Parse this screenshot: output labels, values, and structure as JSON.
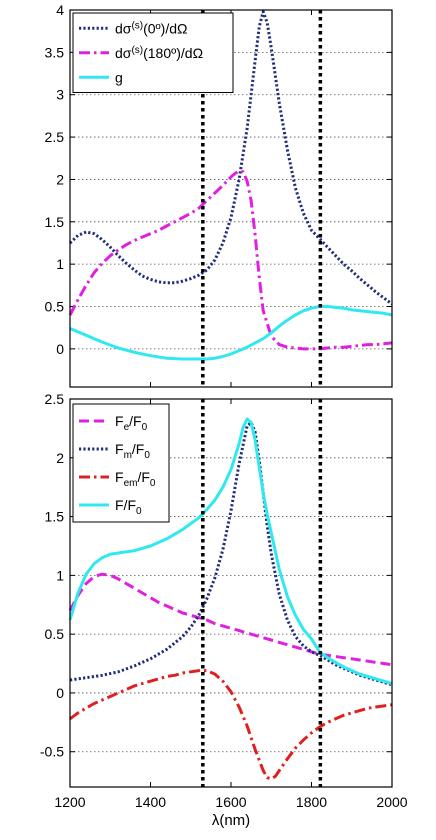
{
  "chart_data": [
    {
      "type": "line",
      "xlim": [
        1200,
        2000
      ],
      "ylim": [
        -0.45,
        4
      ],
      "y_ticks": [
        0,
        0.5,
        1,
        1.5,
        2,
        2.5,
        3,
        3.5,
        4
      ],
      "y_tick_labels": [
        "0",
        "0.5",
        "1",
        "1.5",
        "2",
        "2.5",
        "3",
        "3.5",
        "4"
      ],
      "x_ticks": [
        1200,
        1400,
        1600,
        1800,
        2000
      ],
      "x_tick_labels": [],
      "grid": "horizontal dotted",
      "legend_position": "top-left",
      "vertical_markers": [
        1530,
        1822
      ],
      "series": [
        {
          "name": "dσ(s)(0º)/dΩ",
          "legend": {
            "base": "dσ",
            "sup": "(s)",
            "rest": "(0º)/dΩ"
          },
          "color": "#1f2f7a",
          "dash": "dotted",
          "x": [
            1200,
            1220,
            1240,
            1260,
            1280,
            1300,
            1320,
            1340,
            1360,
            1380,
            1400,
            1420,
            1440,
            1460,
            1480,
            1500,
            1520,
            1540,
            1560,
            1580,
            1600,
            1620,
            1640,
            1660,
            1670,
            1680,
            1690,
            1700,
            1720,
            1740,
            1760,
            1780,
            1800,
            1820,
            1840,
            1860,
            1880,
            1900,
            1920,
            1940,
            1960,
            1980,
            2000
          ],
          "y": [
            1.25,
            1.34,
            1.38,
            1.36,
            1.29,
            1.2,
            1.1,
            1.01,
            0.93,
            0.86,
            0.82,
            0.79,
            0.78,
            0.78,
            0.8,
            0.83,
            0.87,
            0.93,
            1.05,
            1.25,
            1.55,
            2.0,
            2.6,
            3.4,
            3.8,
            3.98,
            3.85,
            3.55,
            2.9,
            2.35,
            1.9,
            1.6,
            1.4,
            1.3,
            1.2,
            1.1,
            1.0,
            0.92,
            0.83,
            0.75,
            0.67,
            0.6,
            0.53
          ]
        },
        {
          "name": "dσ(s)(180º)/dΩ",
          "legend": {
            "base": "dσ",
            "sup": "(s)",
            "rest": "(180º)/dΩ"
          },
          "color": "#e020e0",
          "dash": "dashdot",
          "x": [
            1200,
            1220,
            1240,
            1260,
            1280,
            1300,
            1320,
            1340,
            1360,
            1380,
            1400,
            1420,
            1440,
            1460,
            1480,
            1500,
            1520,
            1540,
            1560,
            1580,
            1600,
            1610,
            1620,
            1630,
            1640,
            1650,
            1660,
            1670,
            1680,
            1700,
            1720,
            1740,
            1760,
            1780,
            1800,
            1820,
            1840,
            1860,
            1880,
            1900,
            1920,
            1940,
            1960,
            1980,
            2000
          ],
          "y": [
            0.4,
            0.58,
            0.75,
            0.9,
            1.01,
            1.1,
            1.17,
            1.23,
            1.28,
            1.32,
            1.36,
            1.4,
            1.45,
            1.5,
            1.55,
            1.6,
            1.66,
            1.75,
            1.84,
            1.93,
            2.03,
            2.07,
            2.1,
            2.09,
            1.98,
            1.75,
            1.35,
            0.85,
            0.45,
            0.15,
            0.05,
            0.02,
            0.01,
            0.0,
            0.0,
            0.0,
            0.01,
            0.02,
            0.02,
            0.03,
            0.04,
            0.05,
            0.05,
            0.06,
            0.07
          ]
        },
        {
          "name": "g",
          "legend": {
            "base": "g",
            "sup": "",
            "rest": ""
          },
          "color": "#30e8f0",
          "dash": "solid",
          "x": [
            1200,
            1240,
            1280,
            1320,
            1360,
            1400,
            1440,
            1480,
            1500,
            1520,
            1540,
            1560,
            1580,
            1600,
            1620,
            1640,
            1660,
            1680,
            1700,
            1720,
            1740,
            1760,
            1780,
            1800,
            1820,
            1840,
            1860,
            1880,
            1900,
            1940,
            1980,
            2000
          ],
          "y": [
            0.24,
            0.16,
            0.08,
            0.01,
            -0.04,
            -0.08,
            -0.11,
            -0.12,
            -0.12,
            -0.12,
            -0.12,
            -0.11,
            -0.09,
            -0.06,
            -0.02,
            0.02,
            0.07,
            0.12,
            0.19,
            0.27,
            0.34,
            0.4,
            0.45,
            0.48,
            0.5,
            0.5,
            0.49,
            0.48,
            0.46,
            0.44,
            0.42,
            0.4
          ]
        }
      ]
    },
    {
      "type": "line",
      "xlim": [
        1200,
        2000
      ],
      "ylim": [
        -0.8,
        2.5
      ],
      "y_ticks": [
        -0.5,
        0,
        0.5,
        1,
        1.5,
        2,
        2.5
      ],
      "y_tick_labels": [
        "-0.5",
        "0",
        "0.5",
        "1",
        "1.5",
        "2",
        "2.5"
      ],
      "x_ticks": [
        1200,
        1400,
        1600,
        1800,
        2000
      ],
      "x_tick_labels": [
        "1200",
        "1400",
        "1600",
        "1800",
        "2000"
      ],
      "xlabel": "λ(nm)",
      "grid": "horizontal dotted",
      "legend_position": "top-left",
      "vertical_markers": [
        1530,
        1822
      ],
      "series": [
        {
          "name": "Fe/F0",
          "legend": {
            "a": "F",
            "a_sub": "e",
            "b": "/F",
            "b_sub": "0"
          },
          "color": "#e020e0",
          "dash": "dashed",
          "x": [
            1200,
            1220,
            1240,
            1260,
            1280,
            1300,
            1320,
            1340,
            1360,
            1380,
            1400,
            1420,
            1440,
            1460,
            1480,
            1500,
            1520,
            1540,
            1560,
            1580,
            1600,
            1620,
            1640,
            1660,
            1680,
            1700,
            1720,
            1740,
            1760,
            1780,
            1800,
            1820,
            1840,
            1860,
            1880,
            1900,
            1920,
            1940,
            1960,
            1980,
            2000
          ],
          "y": [
            0.7,
            0.83,
            0.93,
            0.99,
            1.01,
            1.0,
            0.97,
            0.93,
            0.89,
            0.85,
            0.81,
            0.77,
            0.74,
            0.71,
            0.68,
            0.66,
            0.64,
            0.62,
            0.59,
            0.57,
            0.55,
            0.53,
            0.51,
            0.49,
            0.47,
            0.45,
            0.43,
            0.41,
            0.39,
            0.37,
            0.35,
            0.33,
            0.32,
            0.31,
            0.3,
            0.29,
            0.28,
            0.27,
            0.26,
            0.25,
            0.24
          ]
        },
        {
          "name": "Fm/F0",
          "legend": {
            "a": "F",
            "a_sub": "m",
            "b": "/F",
            "b_sub": "0"
          },
          "color": "#1f2f7a",
          "dash": "dotted",
          "x": [
            1200,
            1240,
            1280,
            1320,
            1360,
            1400,
            1440,
            1480,
            1500,
            1520,
            1540,
            1560,
            1580,
            1600,
            1620,
            1640,
            1650,
            1660,
            1670,
            1680,
            1690,
            1700,
            1720,
            1740,
            1760,
            1780,
            1800,
            1820,
            1840,
            1860,
            1880,
            1900,
            1920,
            1940,
            1960,
            1980,
            2000
          ],
          "y": [
            0.11,
            0.13,
            0.15,
            0.18,
            0.23,
            0.29,
            0.37,
            0.48,
            0.56,
            0.66,
            0.8,
            0.98,
            1.22,
            1.55,
            1.95,
            2.27,
            2.3,
            2.22,
            1.98,
            1.7,
            1.42,
            1.18,
            0.84,
            0.62,
            0.48,
            0.4,
            0.35,
            0.32,
            0.28,
            0.24,
            0.21,
            0.18,
            0.15,
            0.13,
            0.11,
            0.09,
            0.07
          ]
        },
        {
          "name": "Fem/F0",
          "legend": {
            "a": "F",
            "a_sub": "em",
            "b": "/F",
            "b_sub": "0"
          },
          "color": "#e02020",
          "dash": "dashdot",
          "x": [
            1200,
            1220,
            1240,
            1260,
            1280,
            1300,
            1320,
            1340,
            1360,
            1380,
            1400,
            1420,
            1440,
            1460,
            1480,
            1500,
            1520,
            1530,
            1540,
            1560,
            1580,
            1600,
            1620,
            1640,
            1660,
            1680,
            1690,
            1700,
            1710,
            1720,
            1740,
            1760,
            1780,
            1800,
            1820,
            1840,
            1860,
            1880,
            1900,
            1920,
            1940,
            1960,
            1980,
            2000
          ],
          "y": [
            -0.22,
            -0.17,
            -0.13,
            -0.09,
            -0.06,
            -0.03,
            0.0,
            0.03,
            0.06,
            0.08,
            0.1,
            0.12,
            0.14,
            0.15,
            0.17,
            0.18,
            0.19,
            0.19,
            0.19,
            0.16,
            0.1,
            0.01,
            -0.12,
            -0.28,
            -0.48,
            -0.66,
            -0.72,
            -0.73,
            -0.71,
            -0.66,
            -0.56,
            -0.47,
            -0.4,
            -0.34,
            -0.29,
            -0.25,
            -0.22,
            -0.19,
            -0.17,
            -0.15,
            -0.13,
            -0.12,
            -0.11,
            -0.1
          ]
        },
        {
          "name": "F/F0",
          "legend": {
            "a": "F/F",
            "a_sub": "0",
            "b": "",
            "b_sub": ""
          },
          "color": "#30e8f0",
          "dash": "solid",
          "x": [
            1200,
            1220,
            1240,
            1260,
            1280,
            1300,
            1320,
            1340,
            1360,
            1380,
            1400,
            1420,
            1440,
            1460,
            1480,
            1500,
            1520,
            1540,
            1560,
            1580,
            1600,
            1620,
            1630,
            1640,
            1650,
            1660,
            1670,
            1680,
            1690,
            1700,
            1720,
            1740,
            1760,
            1780,
            1800,
            1820,
            1840,
            1860,
            1880,
            1900,
            1920,
            1940,
            1960,
            1980,
            2000
          ],
          "y": [
            0.62,
            0.85,
            1.01,
            1.1,
            1.15,
            1.18,
            1.19,
            1.2,
            1.21,
            1.23,
            1.25,
            1.28,
            1.31,
            1.35,
            1.39,
            1.44,
            1.49,
            1.56,
            1.64,
            1.75,
            1.9,
            2.12,
            2.26,
            2.33,
            2.3,
            2.15,
            1.92,
            1.7,
            1.52,
            1.36,
            1.05,
            0.82,
            0.66,
            0.54,
            0.46,
            0.35,
            0.3,
            0.26,
            0.22,
            0.19,
            0.16,
            0.14,
            0.12,
            0.1,
            0.08
          ]
        }
      ]
    }
  ]
}
